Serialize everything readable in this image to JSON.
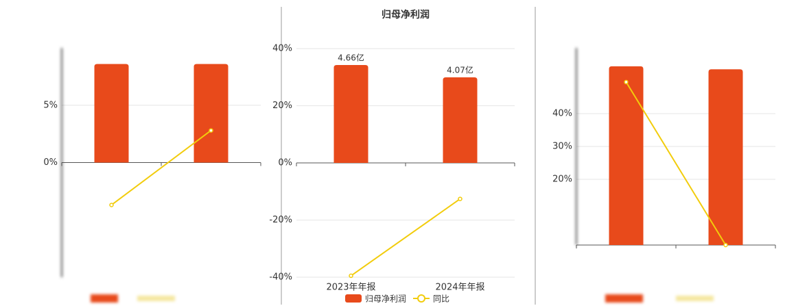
{
  "chart_data": [
    {
      "type": "bar",
      "ylim": [
        -10,
        10
      ],
      "yticks": [
        {
          "value": 5,
          "label": "5%"
        },
        {
          "value": 0,
          "label": "0%"
        }
      ],
      "grid": true,
      "series": [
        {
          "type": "bar",
          "color": "#e84a1b",
          "values": [
            8.6,
            8.6
          ]
        },
        {
          "type": "line",
          "color": "#f2cc0c",
          "values": [
            -3.7,
            2.8
          ]
        }
      ]
    },
    {
      "type": "bar",
      "title": "归母净利润",
      "categories": [
        "2023年年报",
        "2024年年报"
      ],
      "ylim": [
        -40,
        40
      ],
      "yticks": [
        {
          "value": 40,
          "label": "40%"
        },
        {
          "value": 20,
          "label": "20%"
        },
        {
          "value": 0,
          "label": "0%"
        },
        {
          "value": -20,
          "label": "-20%"
        },
        {
          "value": -40,
          "label": "-40%"
        }
      ],
      "y2lim": [
        -5.44,
        5.44
      ],
      "grid": true,
      "series": [
        {
          "type": "bar",
          "name": "归母净利润",
          "color": "#e84a1b",
          "values": [
            4.66,
            4.07
          ],
          "value_labels": [
            "4.66亿",
            "4.07亿"
          ],
          "axis": "y2"
        },
        {
          "type": "line",
          "name": "同比",
          "color": "#f2cc0c",
          "values": [
            -39.5,
            -12.6
          ]
        }
      ]
    },
    {
      "type": "bar",
      "ylim": [
        0,
        60
      ],
      "yticks": [
        {
          "value": 40,
          "label": "40%"
        },
        {
          "value": 30,
          "label": "30%"
        },
        {
          "value": 20,
          "label": "20%"
        }
      ],
      "grid": true,
      "series": [
        {
          "type": "bar",
          "color": "#e84a1b",
          "values": [
            54.4,
            53.5
          ]
        },
        {
          "type": "line",
          "color": "#f2cc0c",
          "values": [
            49.6,
            0
          ]
        }
      ]
    }
  ]
}
